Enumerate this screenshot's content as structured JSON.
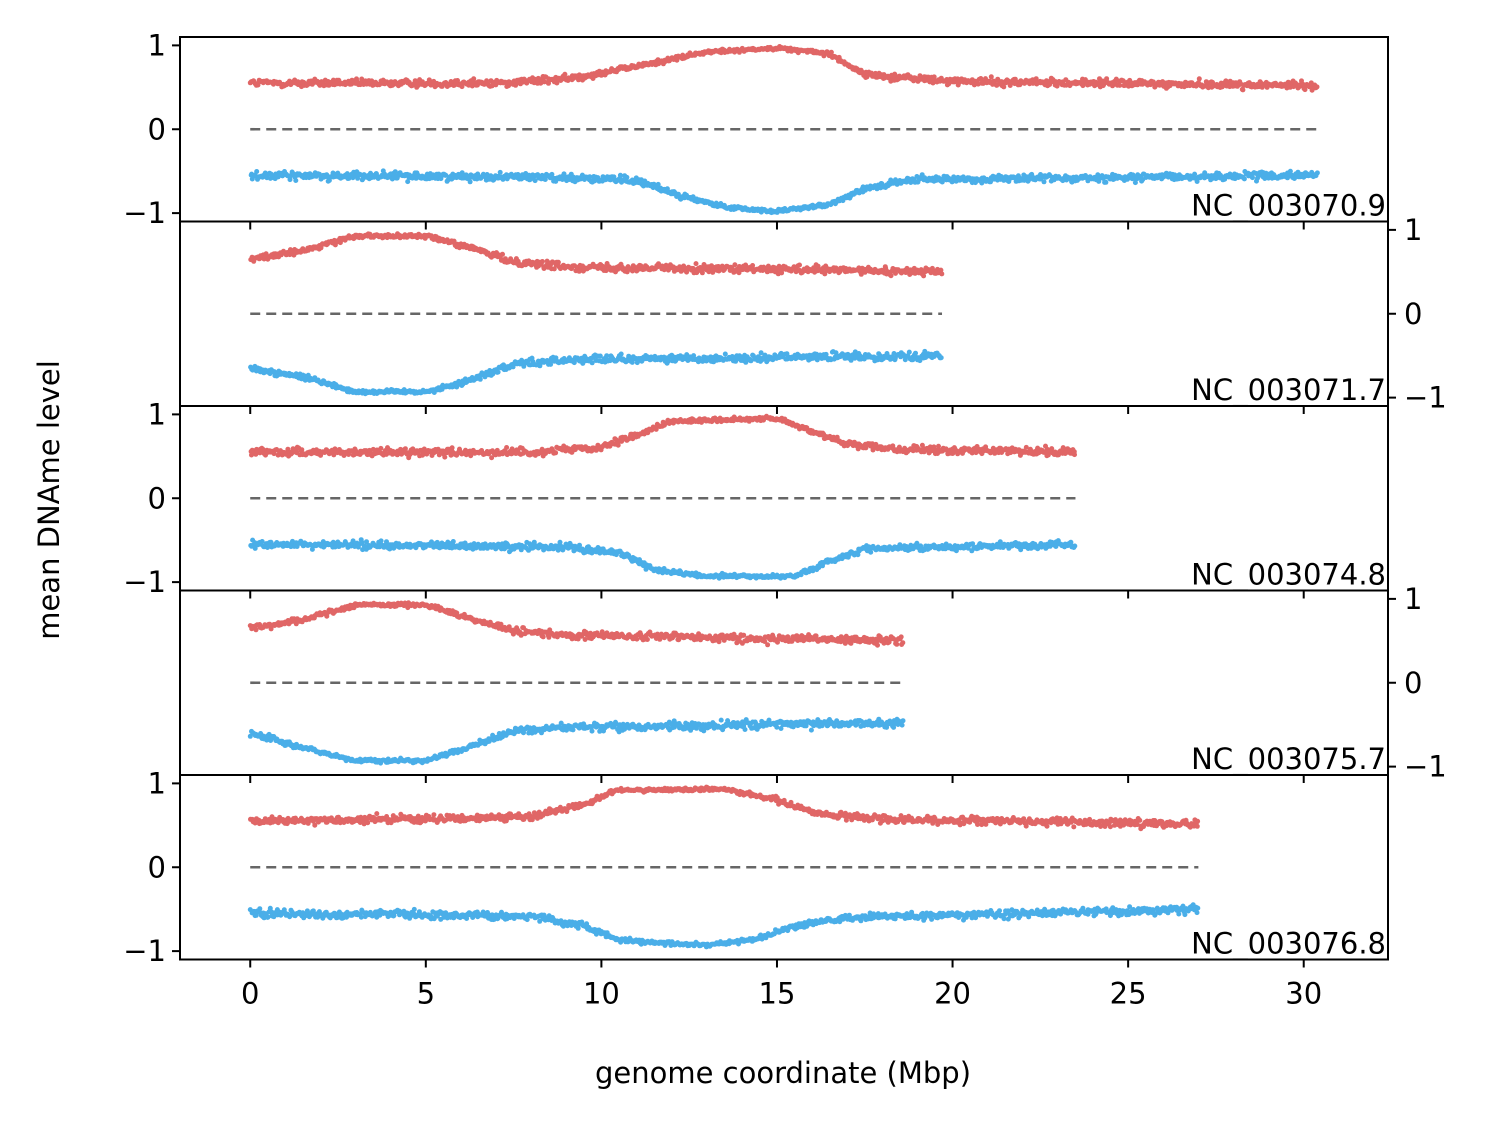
{
  "chart_data": {
    "type": "scatter",
    "layout": "5 vertically stacked panels sharing the x axis; y tick labels alternate left (panels 1, 3, 5) and right (panels 2, 4)",
    "xlabel": "genome coordinate (Mbp)",
    "ylabel": "mean DNAme level",
    "xlim": [
      -2.0,
      32.4
    ],
    "ylim": [
      -1.1,
      1.1
    ],
    "x_ticks": [
      0,
      5,
      10,
      15,
      20,
      25,
      30
    ],
    "x_tick_labels": [
      "0",
      "5",
      "10",
      "15",
      "20",
      "25",
      "30"
    ],
    "y_ticks": [
      -1,
      0,
      1
    ],
    "y_tick_labels": [
      "−1",
      "0",
      "1"
    ],
    "grid": false,
    "legend": "none",
    "colors": {
      "positive": "#e06666",
      "negative": "#4aaee8",
      "zero_line": "#666666"
    },
    "zero_line": {
      "style": "dashed",
      "y": 0
    },
    "panels": [
      {
        "label": "NC_003070.9",
        "ytick_side": "left",
        "x_range": [
          0,
          30.4
        ],
        "positive_profile": [
          [
            0,
            0.55
          ],
          [
            7,
            0.55
          ],
          [
            9,
            0.6
          ],
          [
            11,
            0.75
          ],
          [
            13,
            0.92
          ],
          [
            15,
            0.97
          ],
          [
            16.5,
            0.9
          ],
          [
            17.5,
            0.65
          ],
          [
            20,
            0.57
          ],
          [
            30.4,
            0.52
          ]
        ],
        "negative_profile": [
          [
            0,
            -0.55
          ],
          [
            9,
            -0.57
          ],
          [
            11,
            -0.62
          ],
          [
            12.5,
            -0.82
          ],
          [
            13.5,
            -0.93
          ],
          [
            15,
            -0.98
          ],
          [
            16.5,
            -0.9
          ],
          [
            17.5,
            -0.7
          ],
          [
            19,
            -0.6
          ],
          [
            30.4,
            -0.55
          ]
        ]
      },
      {
        "label": "NC_003071.7",
        "ytick_side": "right",
        "x_range": [
          0,
          19.7
        ],
        "positive_profile": [
          [
            0,
            0.65
          ],
          [
            1.5,
            0.75
          ],
          [
            3,
            0.93
          ],
          [
            5,
            0.93
          ],
          [
            6,
            0.82
          ],
          [
            7.5,
            0.62
          ],
          [
            9,
            0.56
          ],
          [
            19.7,
            0.5
          ]
        ],
        "negative_profile": [
          [
            0,
            -0.65
          ],
          [
            1.5,
            -0.75
          ],
          [
            3,
            -0.93
          ],
          [
            5,
            -0.93
          ],
          [
            6,
            -0.83
          ],
          [
            7.5,
            -0.6
          ],
          [
            9,
            -0.55
          ],
          [
            19.7,
            -0.5
          ]
        ]
      },
      {
        "label": "NC_003074.8",
        "ytick_side": "left",
        "x_range": [
          0,
          23.5
        ],
        "positive_profile": [
          [
            0,
            0.55
          ],
          [
            8,
            0.55
          ],
          [
            10,
            0.6
          ],
          [
            11,
            0.75
          ],
          [
            12,
            0.92
          ],
          [
            15,
            0.95
          ],
          [
            16,
            0.8
          ],
          [
            17,
            0.65
          ],
          [
            18.5,
            0.58
          ],
          [
            23.5,
            0.55
          ]
        ],
        "negative_profile": [
          [
            0,
            -0.55
          ],
          [
            9,
            -0.58
          ],
          [
            10.5,
            -0.65
          ],
          [
            11.5,
            -0.85
          ],
          [
            13,
            -0.93
          ],
          [
            15.5,
            -0.93
          ],
          [
            16.5,
            -0.75
          ],
          [
            17.5,
            -0.6
          ],
          [
            23.5,
            -0.55
          ]
        ]
      },
      {
        "label": "NC_003075.7",
        "ytick_side": "right",
        "x_range": [
          0,
          18.6
        ],
        "positive_profile": [
          [
            0,
            0.65
          ],
          [
            1.5,
            0.75
          ],
          [
            3,
            0.93
          ],
          [
            5,
            0.93
          ],
          [
            6,
            0.8
          ],
          [
            7.5,
            0.62
          ],
          [
            9,
            0.57
          ],
          [
            18.6,
            0.5
          ]
        ],
        "negative_profile": [
          [
            0,
            -0.6
          ],
          [
            1.5,
            -0.78
          ],
          [
            3,
            -0.93
          ],
          [
            5,
            -0.93
          ],
          [
            6,
            -0.8
          ],
          [
            7.5,
            -0.58
          ],
          [
            9,
            -0.53
          ],
          [
            18.6,
            -0.48
          ]
        ]
      },
      {
        "label": "NC_003076.8",
        "ytick_side": "left",
        "x_range": [
          0,
          27.0
        ],
        "positive_profile": [
          [
            0,
            0.55
          ],
          [
            8,
            0.6
          ],
          [
            9.5,
            0.75
          ],
          [
            10.5,
            0.92
          ],
          [
            13.5,
            0.93
          ],
          [
            15,
            0.8
          ],
          [
            16,
            0.65
          ],
          [
            18,
            0.57
          ],
          [
            27,
            0.52
          ]
        ],
        "negative_profile": [
          [
            0,
            -0.55
          ],
          [
            8,
            -0.58
          ],
          [
            9.5,
            -0.7
          ],
          [
            10.5,
            -0.87
          ],
          [
            13,
            -0.93
          ],
          [
            14.5,
            -0.85
          ],
          [
            15.5,
            -0.7
          ],
          [
            17,
            -0.6
          ],
          [
            27,
            -0.5
          ]
        ]
      }
    ]
  }
}
